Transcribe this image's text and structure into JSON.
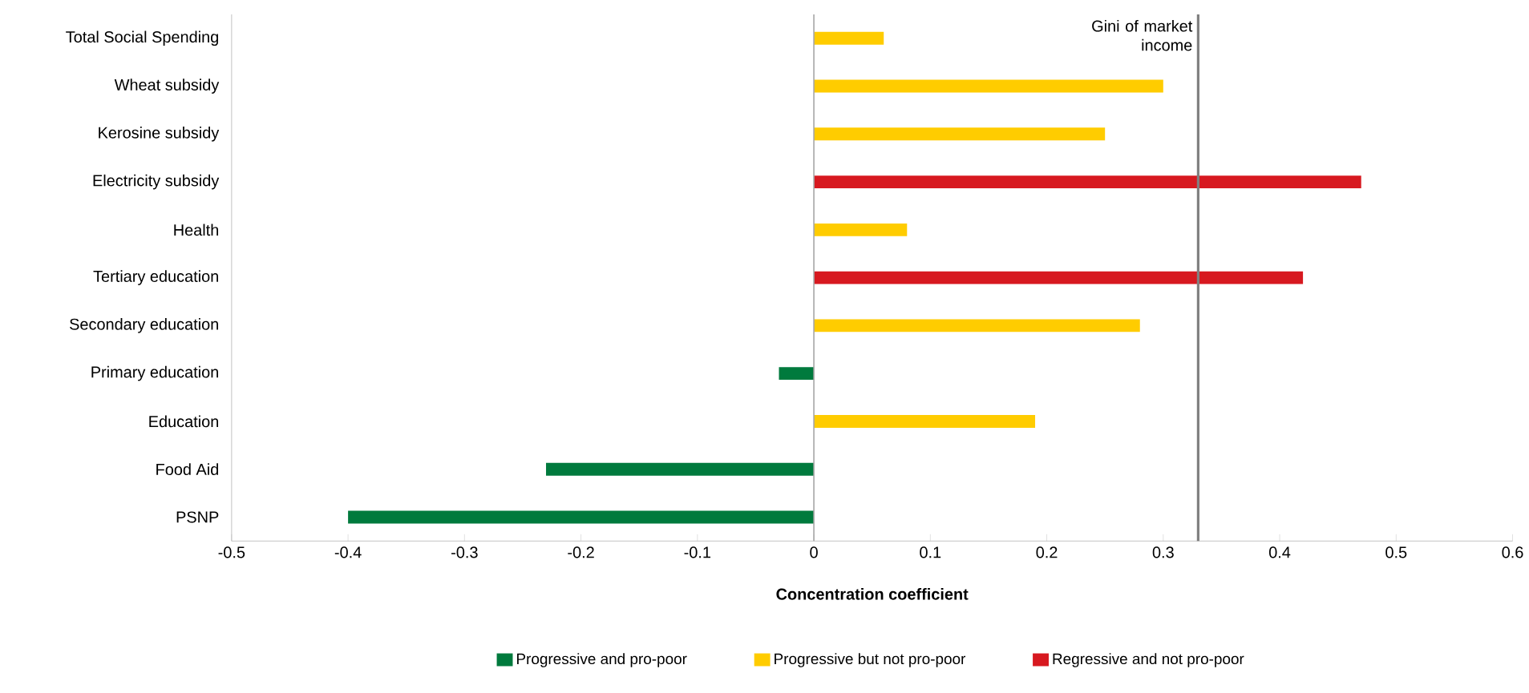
{
  "chart_data": {
    "type": "bar",
    "orientation": "horizontal",
    "xlabel": "Concentration coefficient",
    "categories": [
      "Total Social Spending",
      "Wheat subsidy",
      "Kerosine subsidy",
      "Electricity subsidy",
      "Health",
      "Tertiary education",
      "Secondary education",
      "Primary education",
      "Education",
      "Food Aid",
      "PSNP"
    ],
    "series": [
      {
        "name": "Progressive and pro-poor",
        "color": "#007a3d",
        "values": [
          null,
          null,
          null,
          null,
          null,
          null,
          null,
          -0.03,
          null,
          -0.23,
          -0.4
        ]
      },
      {
        "name": "Progressive but not pro-poor",
        "color": "#ffcc00",
        "values": [
          0.06,
          0.3,
          0.25,
          null,
          0.08,
          null,
          0.28,
          null,
          0.19,
          null,
          null
        ]
      },
      {
        "name": "Regressive and not pro-poor",
        "color": "#d71920",
        "values": [
          null,
          null,
          null,
          0.47,
          null,
          0.42,
          null,
          null,
          null,
          null,
          null
        ]
      }
    ],
    "xlim": [
      -0.5,
      0.6
    ],
    "xticks": [
      -0.5,
      -0.4,
      -0.3,
      -0.2,
      -0.1,
      0,
      0.1,
      0.2,
      0.3,
      0.4,
      0.5,
      0.6
    ],
    "ref_lines": [
      {
        "axis": "x",
        "value": 0.33,
        "label": "Gini of market income",
        "color": "#808080"
      }
    ],
    "legend": "bottom"
  }
}
